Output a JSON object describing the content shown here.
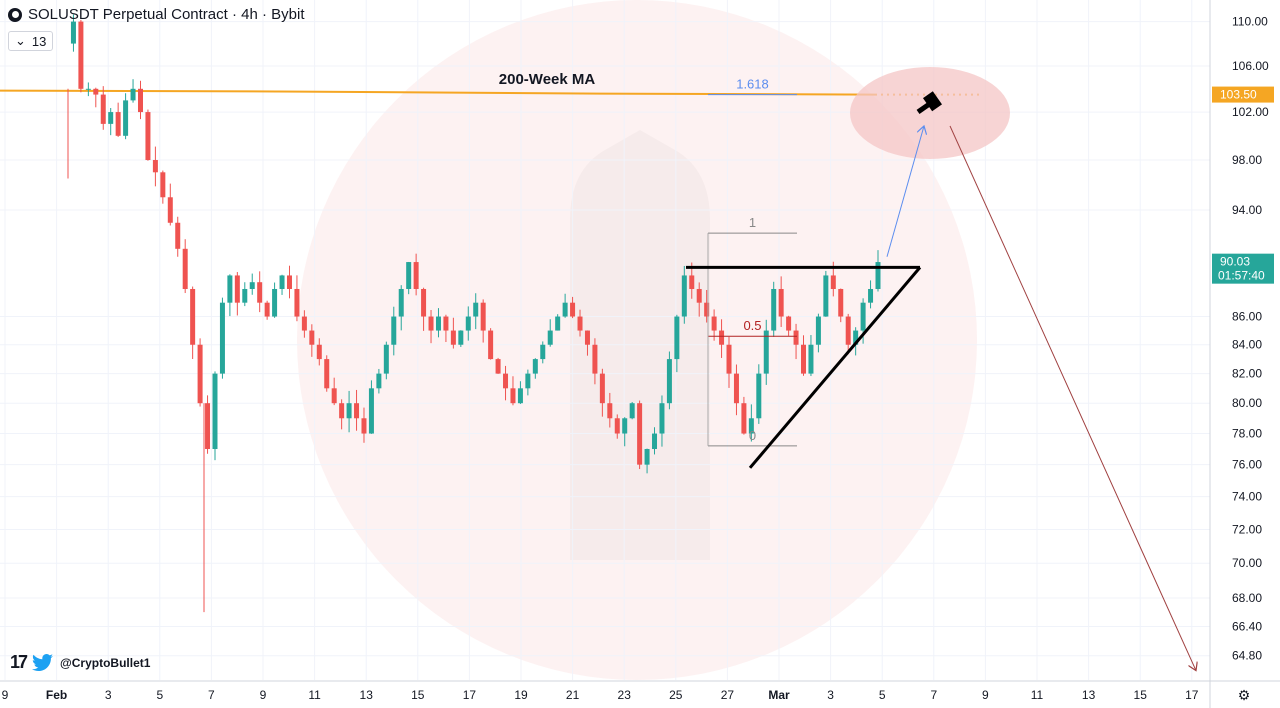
{
  "header": {
    "title": "SOLUSDT Perpetual Contract · 4h · Bybit",
    "indicator_toggle": "13"
  },
  "brand": {
    "handle": "@CryptoBullet1"
  },
  "colors": {
    "up": "#26a69a",
    "down": "#ef5350",
    "ma": "#f5a623",
    "projection": "#5b8def",
    "target_circle": "#f4c6c6",
    "down_arrow": "#a04040",
    "pattern": "#000000"
  },
  "chart_data": {
    "type": "candlestick",
    "title": "SOLUSDT Perpetual Contract · 4h · Bybit",
    "y_axis": {
      "ticks": [
        "110.00",
        "106.00",
        "102.00",
        "98.00",
        "94.00",
        "86.00",
        "84.00",
        "82.00",
        "80.00",
        "78.00",
        "76.00",
        "74.00",
        "72.00",
        "70.00",
        "68.00",
        "66.40",
        "64.80"
      ],
      "scale": "log",
      "range": [
        63.5,
        112
      ]
    },
    "x_axis": {
      "ticks": [
        "9",
        "Feb",
        "3",
        "5",
        "7",
        "9",
        "11",
        "13",
        "15",
        "17",
        "19",
        "21",
        "23",
        "25",
        "27",
        "Mar",
        "3",
        "5",
        "7",
        "9",
        "11",
        "13",
        "15",
        "17"
      ]
    },
    "price_labels": [
      {
        "value": "103.50",
        "kind": "ma"
      },
      {
        "value": "90.03",
        "kind": "last",
        "countdown": "01:57:40"
      }
    ],
    "ma_line": {
      "name": "200-Week MA",
      "value": 103.5
    },
    "fib_levels": [
      {
        "label": "1.618",
        "value": 103.5
      },
      {
        "label": "1",
        "value": 92.2
      },
      {
        "label": "0.5",
        "value": 84.6
      },
      {
        "label": "0",
        "value": 77.2
      }
    ],
    "ascending_triangle": {
      "resistance": 89.6,
      "support_start": 75.8,
      "support_end": 89.6
    },
    "targets": [
      {
        "label": "projection_up",
        "from": 90.4,
        "to": 101.5
      },
      {
        "label": "projection_down",
        "from": 101.5,
        "to": 64.0
      }
    ],
    "ohlc_path": [
      108,
      110,
      104,
      104,
      103.5,
      101,
      102,
      100,
      103,
      104,
      102,
      98,
      97,
      95,
      93,
      91,
      88,
      84,
      80,
      77,
      82,
      87,
      89,
      87,
      88,
      88.5,
      87,
      86,
      88,
      89,
      88,
      86,
      85,
      84,
      83,
      81,
      80,
      79,
      80,
      79,
      78,
      81,
      82,
      84,
      86,
      88,
      90,
      88,
      86,
      85,
      86,
      85,
      84,
      85,
      86,
      87,
      85,
      83,
      82,
      81,
      80,
      81,
      82,
      83,
      84,
      85,
      86,
      87,
      86,
      85,
      84,
      82,
      80,
      79,
      78,
      79,
      80,
      76,
      77,
      78,
      80,
      83,
      86,
      89,
      88,
      87,
      86,
      85,
      84,
      82,
      80,
      78,
      79,
      82,
      85,
      88,
      86,
      85,
      84,
      82,
      84,
      86,
      89,
      88,
      86,
      84,
      85,
      87,
      88,
      90
    ]
  }
}
